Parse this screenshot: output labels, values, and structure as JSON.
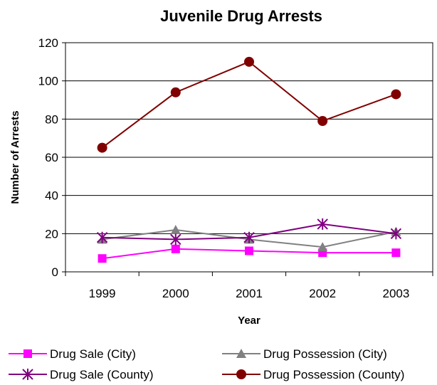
{
  "chart_data": {
    "type": "line",
    "title": "Juvenile Drug Arrests",
    "xlabel": "Year",
    "ylabel": "Number of Arrests",
    "categories": [
      "1999",
      "2000",
      "2001",
      "2002",
      "2003"
    ],
    "ylim": [
      0,
      120
    ],
    "yticks": [
      0,
      20,
      40,
      60,
      80,
      100,
      120
    ],
    "grid": true,
    "legend_position": "bottom",
    "series": [
      {
        "name": "Drug Sale (City)",
        "values": [
          7,
          12,
          11,
          10,
          10
        ],
        "color": "#ff00ff",
        "marker": "square"
      },
      {
        "name": "Drug Possession (City)",
        "values": [
          17,
          22,
          17,
          13,
          21
        ],
        "color": "#808080",
        "marker": "triangle"
      },
      {
        "name": "Drug Sale (County)",
        "values": [
          18,
          17,
          18,
          25,
          20
        ],
        "color": "#800080",
        "marker": "star"
      },
      {
        "name": "Drug Possession (County)",
        "values": [
          65,
          94,
          110,
          79,
          93
        ],
        "color": "#800000",
        "marker": "circle"
      }
    ]
  }
}
